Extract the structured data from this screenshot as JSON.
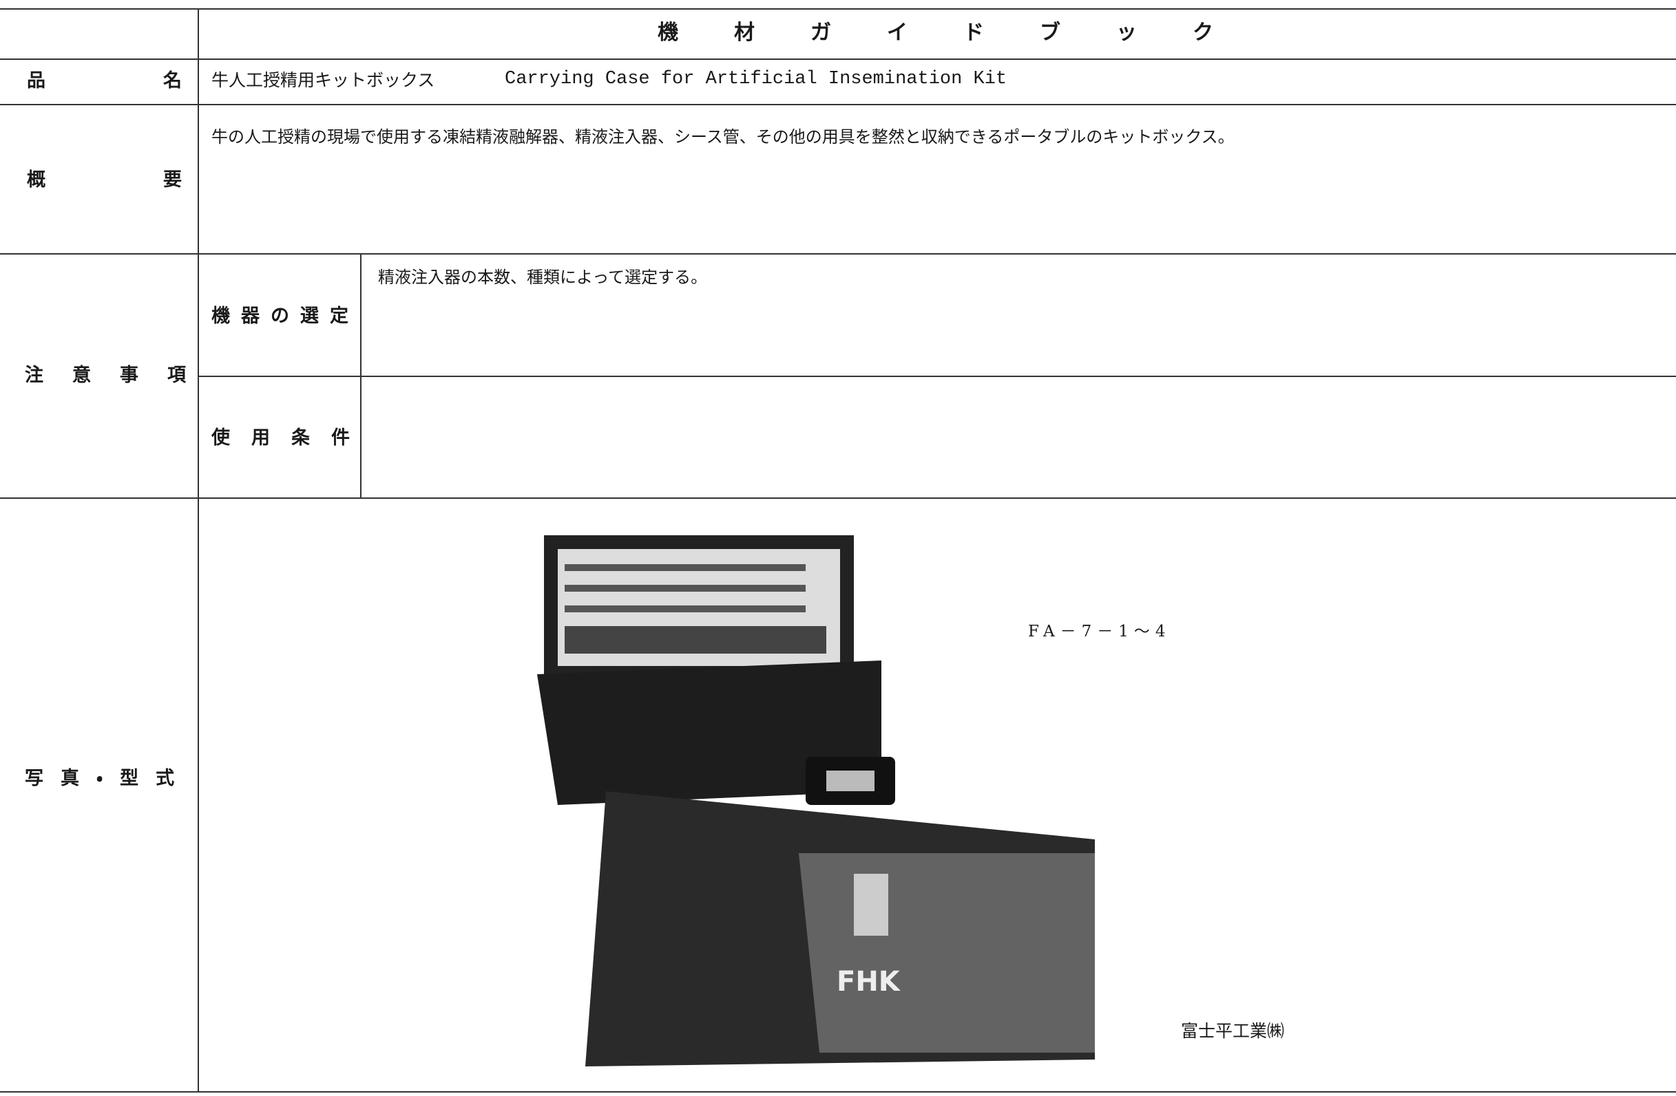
{
  "header": {
    "title": "機材ガイドブック"
  },
  "rows": {
    "name": {
      "label": "品名",
      "value_ja": "牛人工授精用キットボックス",
      "value_en": "Carrying Case for Artificial Insemination Kit"
    },
    "overview": {
      "label": "概要",
      "text": "牛の人工授精の現場で使用する凍結精液融解器、精液注入器、シース管、その他の用具を整然と収納できるポータブルのキットボックス。"
    },
    "cautions": {
      "label": "注意事項",
      "selection": {
        "label": "機器の選定",
        "text": "精液注入器の本数、種類によって選定する。"
      },
      "conditions": {
        "label": "使用条件"
      }
    },
    "photo": {
      "label": "写真・型式",
      "model": "FA－7－1～4",
      "maker": "富士平工業㈱"
    }
  }
}
